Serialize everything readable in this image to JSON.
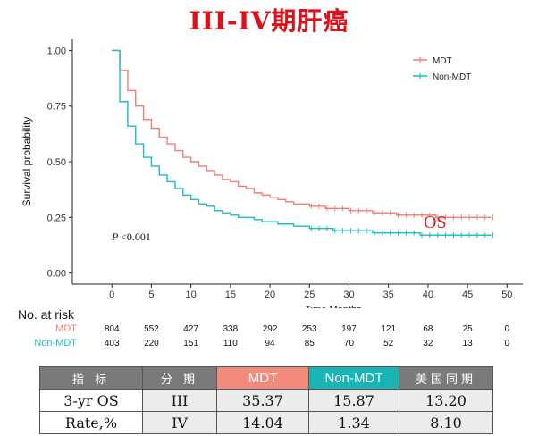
{
  "page_title": "III-IV期肝癌",
  "chart_data": {
    "type": "line",
    "step": true,
    "xlabel": "Time,Months",
    "ylabel": "Survival probability",
    "xlim": [
      -5,
      52
    ],
    "ylim": [
      -0.05,
      1.05
    ],
    "xticks": [
      "0",
      "5",
      "10",
      "15",
      "20",
      "25",
      "30",
      "35",
      "40",
      "45",
      "50"
    ],
    "yticks": [
      "0.00",
      "0.25",
      "0.50",
      "0.75",
      "1.00"
    ],
    "legend_position": "top-right",
    "pvalue": "< 0.001",
    "annotation": "OS",
    "series": [
      {
        "name": "MDT",
        "color": "#f07f71",
        "x": [
          0,
          1,
          2,
          3,
          4,
          5,
          6,
          7,
          8,
          9,
          10,
          11,
          12,
          13,
          14,
          15,
          16,
          17,
          18,
          19,
          20,
          21,
          22,
          23,
          24,
          25,
          26,
          27,
          28,
          29,
          30,
          31,
          32,
          33,
          34,
          35,
          36,
          37,
          38,
          39,
          40,
          41,
          42,
          43,
          44,
          45,
          46,
          47,
          48
        ],
        "y": [
          1.0,
          0.91,
          0.82,
          0.75,
          0.69,
          0.65,
          0.61,
          0.58,
          0.55,
          0.52,
          0.5,
          0.48,
          0.46,
          0.44,
          0.42,
          0.41,
          0.39,
          0.38,
          0.36,
          0.35,
          0.34,
          0.33,
          0.32,
          0.31,
          0.31,
          0.3,
          0.3,
          0.29,
          0.29,
          0.29,
          0.28,
          0.28,
          0.28,
          0.27,
          0.27,
          0.27,
          0.26,
          0.26,
          0.26,
          0.26,
          0.26,
          0.25,
          0.25,
          0.25,
          0.25,
          0.25,
          0.25,
          0.25,
          0.25
        ]
      },
      {
        "name": "Non-MDT",
        "color": "#1cbcbf",
        "x": [
          0,
          1,
          2,
          3,
          4,
          5,
          6,
          7,
          8,
          9,
          10,
          11,
          12,
          13,
          14,
          15,
          16,
          17,
          18,
          19,
          20,
          21,
          22,
          23,
          24,
          25,
          26,
          27,
          28,
          29,
          30,
          31,
          32,
          33,
          34,
          35,
          36,
          37,
          38,
          39,
          40,
          41,
          42,
          43,
          44,
          45,
          46,
          47,
          48
        ],
        "y": [
          1.0,
          0.77,
          0.66,
          0.58,
          0.52,
          0.48,
          0.44,
          0.41,
          0.38,
          0.35,
          0.33,
          0.31,
          0.3,
          0.28,
          0.27,
          0.26,
          0.25,
          0.25,
          0.24,
          0.23,
          0.23,
          0.22,
          0.22,
          0.21,
          0.21,
          0.2,
          0.2,
          0.2,
          0.19,
          0.19,
          0.19,
          0.19,
          0.19,
          0.18,
          0.18,
          0.18,
          0.18,
          0.18,
          0.18,
          0.17,
          0.17,
          0.17,
          0.17,
          0.17,
          0.17,
          0.17,
          0.17,
          0.17,
          0.17
        ]
      }
    ]
  },
  "risk_table": {
    "header": "No. at risk",
    "times": [
      0,
      5,
      10,
      15,
      20,
      25,
      30,
      35,
      40,
      45,
      50
    ],
    "rows": [
      {
        "label": "MDT",
        "color": "#f07f71",
        "values": [
          "804",
          "552",
          "427",
          "338",
          "292",
          "253",
          "197",
          "121",
          "68",
          "25",
          "0"
        ]
      },
      {
        "label": "Non-MDT",
        "color": "#1cbcbf",
        "values": [
          "403",
          "220",
          "151",
          "110",
          "94",
          "85",
          "70",
          "52",
          "32",
          "13",
          "0"
        ]
      }
    ]
  },
  "summary_table": {
    "headers": [
      "指 标",
      "分 期",
      "MDT",
      "Non-MDT",
      "美国同期"
    ],
    "metric_line1": "3-yr OS",
    "metric_line2": "Rate,%",
    "rows": [
      {
        "stage": "III",
        "mdt": "35.37",
        "non_mdt": "15.87",
        "us": "13.20"
      },
      {
        "stage": "IV",
        "mdt": "14.04",
        "non_mdt": "1.34",
        "us": "8.10"
      }
    ]
  }
}
